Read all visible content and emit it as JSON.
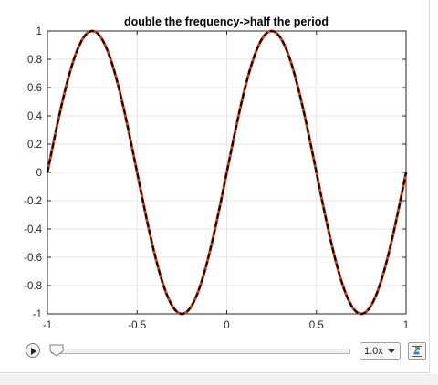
{
  "chart_data": {
    "type": "line",
    "title": "double the frequency->half the period",
    "xlabel": "",
    "ylabel": "",
    "xlim": [
      -1,
      1
    ],
    "ylim": [
      -1,
      1
    ],
    "xticks": [
      -1,
      -0.5,
      0,
      0.5,
      1
    ],
    "xtick_labels": [
      "-1",
      "-0.5",
      "0",
      "0.5",
      "1"
    ],
    "yticks": [
      1,
      0.8,
      0.6,
      0.4,
      0.2,
      0,
      -0.2,
      -0.4,
      -0.6,
      -0.8,
      -1
    ],
    "ytick_labels": [
      "1",
      "0.8",
      "0.6",
      "0.4",
      "0.2",
      "0",
      "-0.2",
      "-0.4",
      "-0.6",
      "-0.8",
      "-1"
    ],
    "grid": true,
    "series": [
      {
        "function": "y = sin(2*pi*x)",
        "color": "#d9411e",
        "style": "solid",
        "x": [
          -1,
          -0.875,
          -0.75,
          -0.625,
          -0.5,
          -0.375,
          -0.25,
          -0.125,
          0,
          0.125,
          0.25,
          0.375,
          0.5,
          0.625,
          0.75,
          0.875,
          1
        ],
        "y": [
          0,
          0.707,
          1,
          0.707,
          0,
          -0.707,
          -1,
          -0.707,
          0,
          0.707,
          1,
          0.707,
          0,
          -0.707,
          -1,
          -0.707,
          0
        ]
      },
      {
        "function": "y = sin(2*pi*x)",
        "color": "#000000",
        "style": "dashed",
        "x": [
          -1,
          -0.875,
          -0.75,
          -0.625,
          -0.5,
          -0.375,
          -0.25,
          -0.125,
          0,
          0.125,
          0.25,
          0.375,
          0.5,
          0.625,
          0.75,
          0.875,
          1
        ],
        "y": [
          0,
          0.707,
          1,
          0.707,
          0,
          -0.707,
          -1,
          -0.707,
          0,
          0.707,
          1,
          0.707,
          0,
          -0.707,
          -1,
          -0.707,
          0
        ]
      }
    ]
  },
  "controls": {
    "speed_value": "1.0x",
    "playback_progress": 0,
    "play_icon": "play-icon",
    "export_icon": "export-icon"
  }
}
